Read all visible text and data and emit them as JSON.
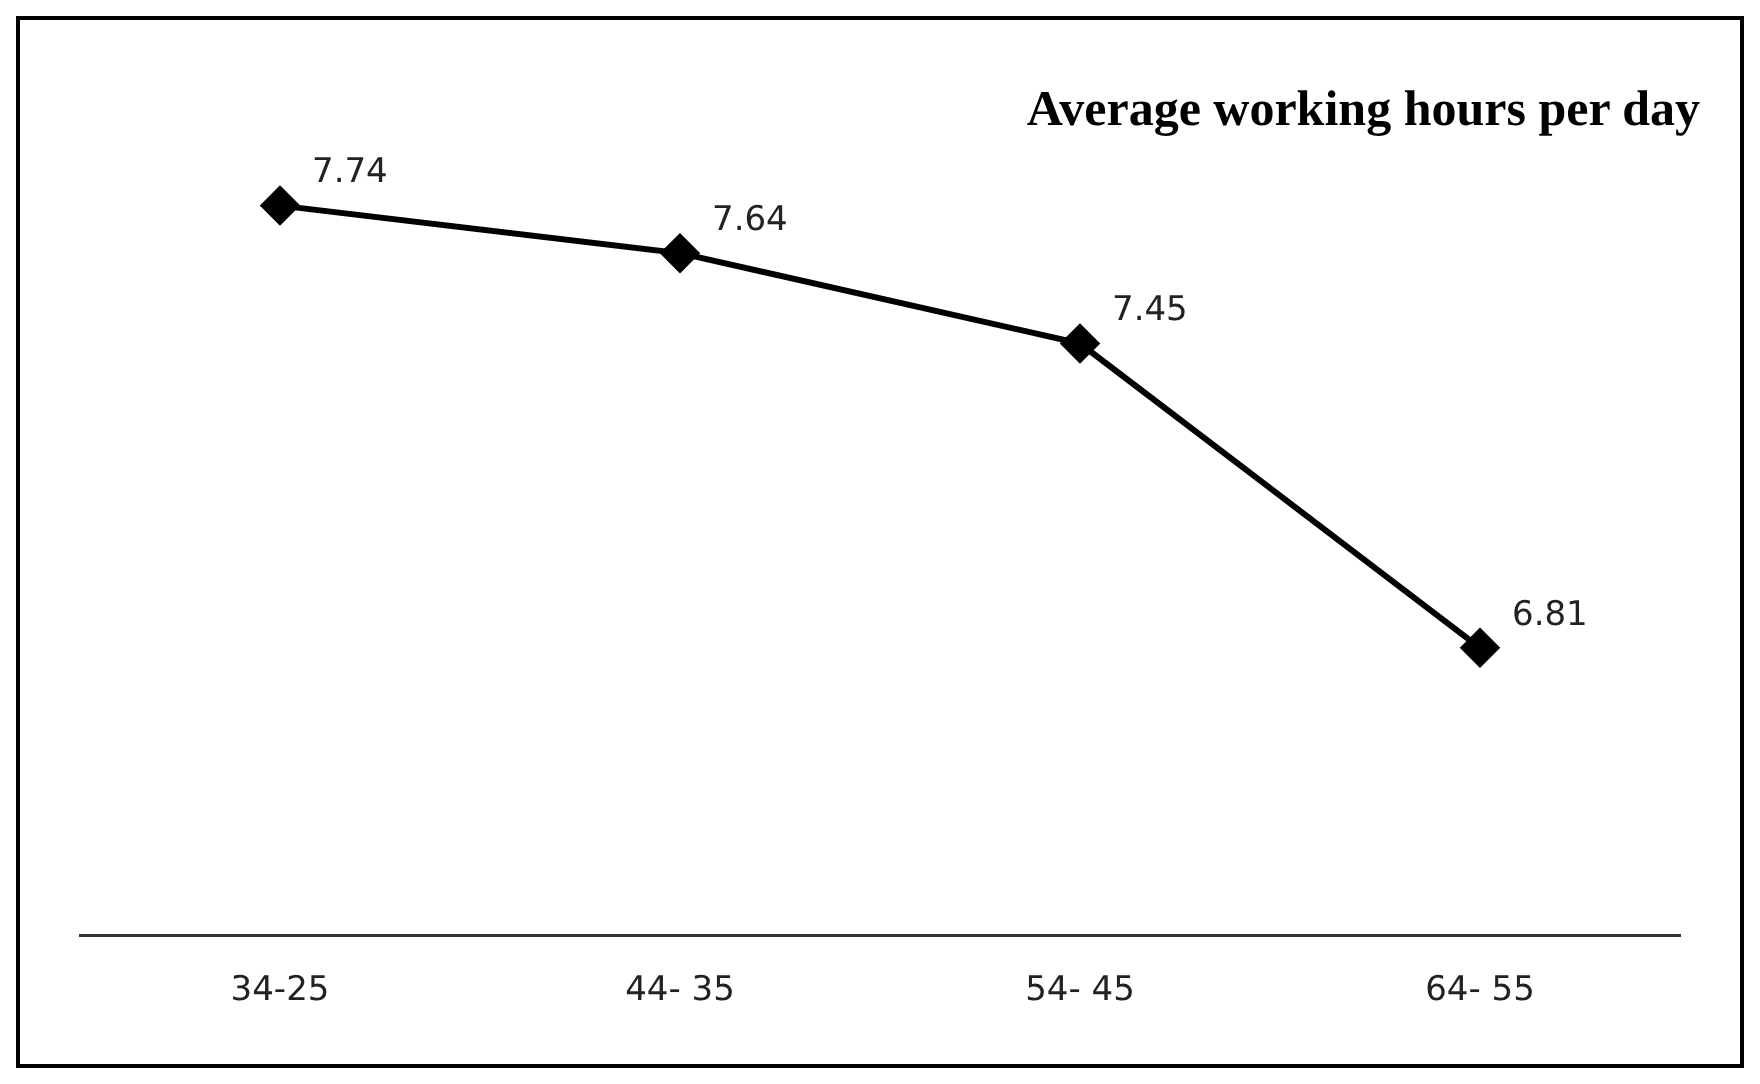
{
  "chart_data": {
    "type": "line",
    "title": "Average working hours per day",
    "categories": [
      "34-25",
      "44- 35",
      "54- 45",
      "64- 55"
    ],
    "values": [
      7.74,
      7.64,
      7.45,
      6.81
    ],
    "color": "#000000",
    "data_labels": true,
    "marker": "diamond",
    "line_style": "solid"
  }
}
